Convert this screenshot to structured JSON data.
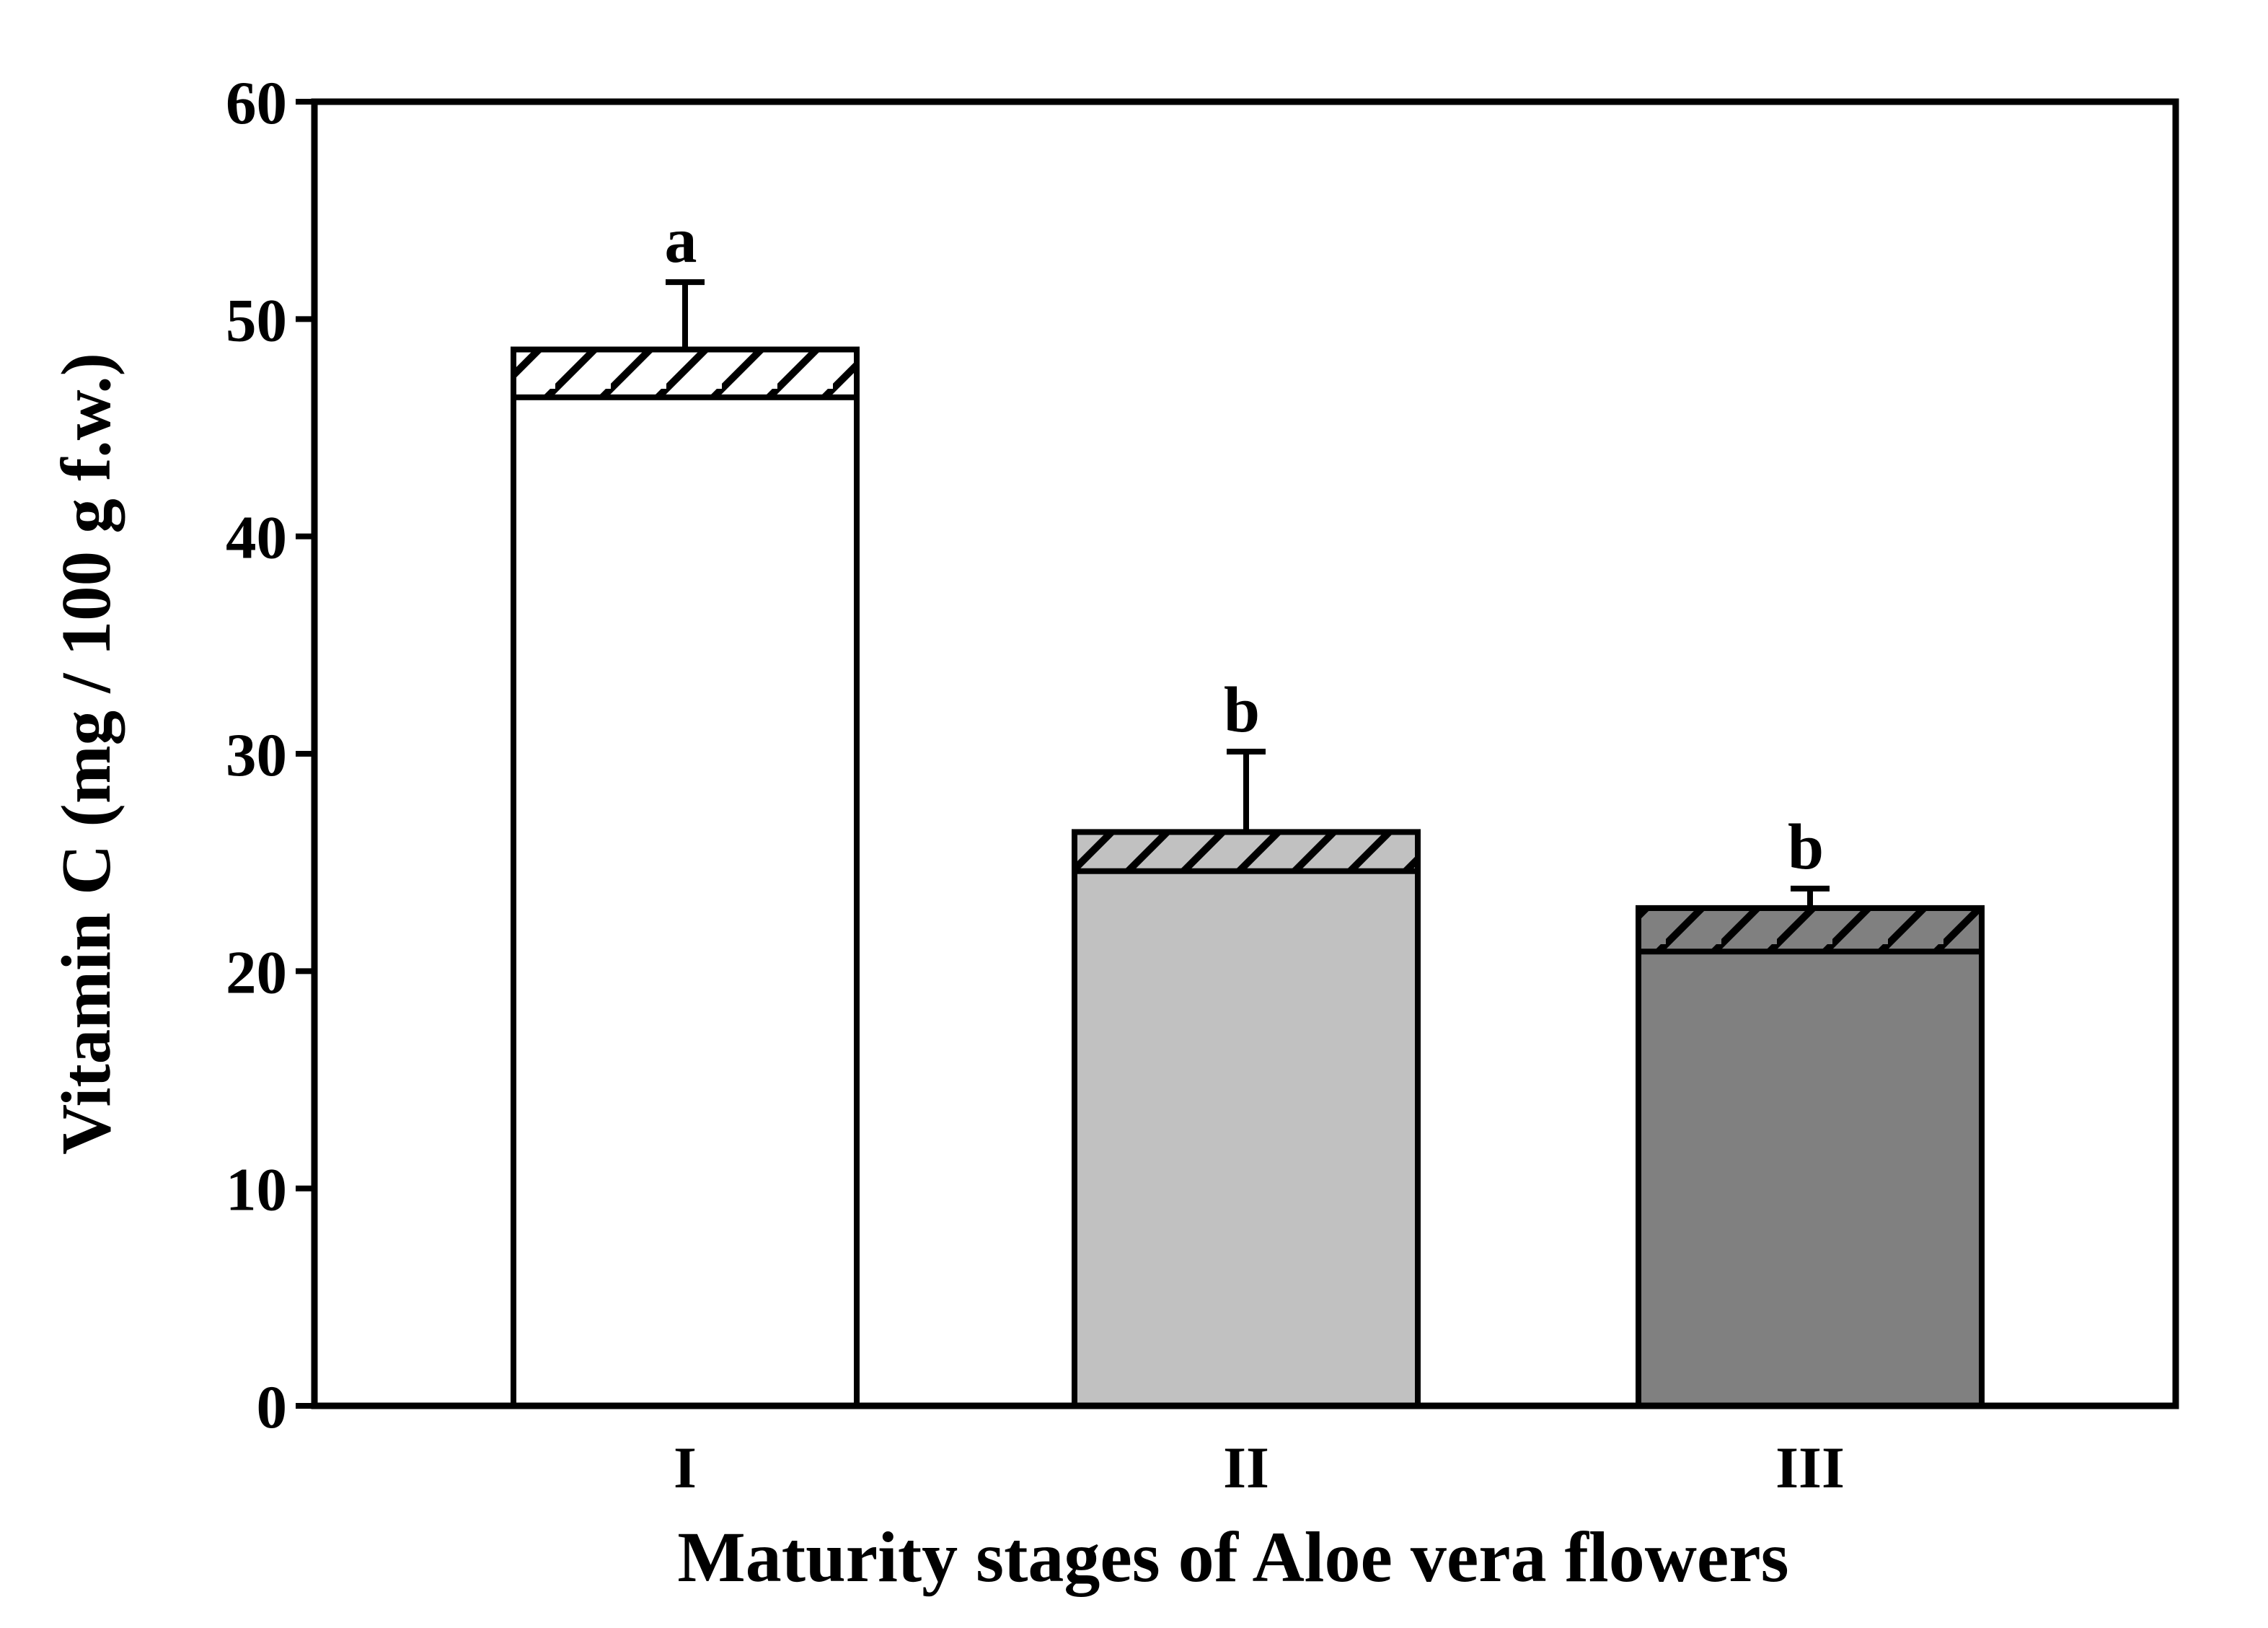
{
  "chart_data": {
    "type": "bar",
    "title": "",
    "xlabel": "Maturity stages of Aloe vera flowers",
    "ylabel": "Vitamin C (mg / 100 g f.w.)",
    "ylim": [
      0,
      60
    ],
    "yticks": [
      0,
      10,
      20,
      30,
      40,
      50,
      60
    ],
    "grid": false,
    "legend": "none",
    "categories": [
      "I",
      "II",
      "III"
    ],
    "bars": [
      {
        "category": "I",
        "value": 48.6,
        "hatch_band_bottom": 46.4,
        "error_top": 51.7,
        "sig_letter": "a",
        "fill": "#ffffff"
      },
      {
        "category": "II",
        "value": 26.4,
        "hatch_band_bottom": 24.6,
        "error_top": 30.1,
        "sig_letter": "b",
        "fill": "#c1c1c1"
      },
      {
        "category": "III",
        "value": 22.9,
        "hatch_band_bottom": 20.9,
        "error_top": 23.8,
        "sig_letter": "b",
        "fill": "#808080"
      }
    ],
    "bar_style": "solid fill with diagonal-hatched cap band",
    "colors": {
      "axis": "#000000",
      "hatch_line": "#000000",
      "background": "#ffffff"
    }
  }
}
